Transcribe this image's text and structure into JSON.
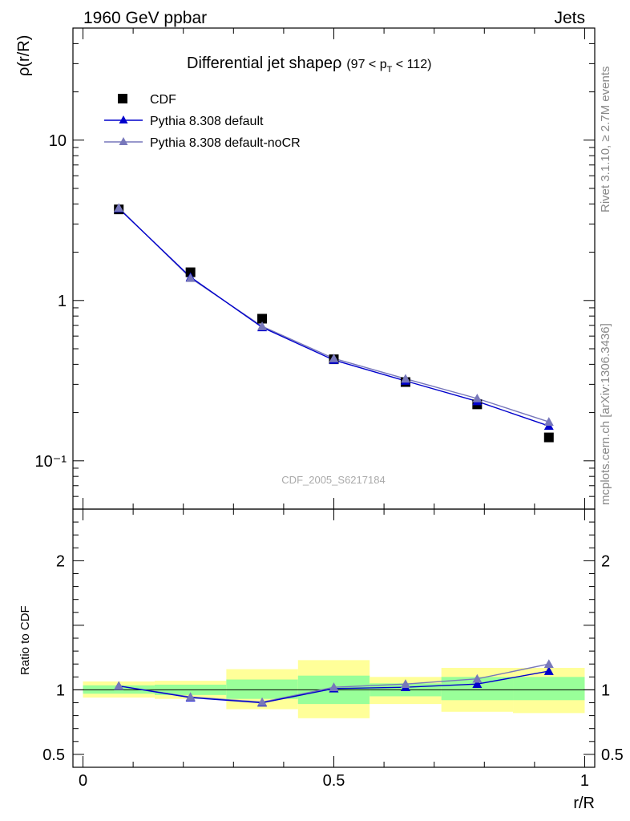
{
  "header": {
    "left": "1960 GeV ppbar",
    "right": "Jets"
  },
  "side_labels": {
    "rivet": "Rivet 3.1.10, ≥ 2.7M events",
    "source": "mcplots.cern.ch [arXiv:1306.3436]"
  },
  "chart_data": [
    {
      "type": "scatter",
      "title": "Differential jet shapeρ",
      "title_suffix": "(97 < p",
      "title_sub": "T",
      "title_end": " < 112)",
      "watermark": "CDF_2005_S6217184",
      "ylabel": "ρ(r/R)",
      "xlabel": "",
      "yscale": "log",
      "ylim": [
        0.05,
        50
      ],
      "xlim": [
        -0.02,
        1.02
      ],
      "y_tick_labels": [
        "10⁻¹",
        "1",
        "10"
      ],
      "grid": false,
      "legend_position": "top-left",
      "x": [
        0.0714,
        0.2143,
        0.3571,
        0.5,
        0.6429,
        0.7857,
        0.9286
      ],
      "series": [
        {
          "name": "CDF",
          "marker": "square",
          "color": "#000000",
          "values": [
            3.7,
            1.5,
            0.77,
            0.43,
            0.31,
            0.225,
            0.14
          ]
        },
        {
          "name": "Pythia 8.308 default",
          "marker": "triangle",
          "color": "#0000cc",
          "values": [
            3.75,
            1.4,
            0.68,
            0.425,
            0.315,
            0.235,
            0.165
          ]
        },
        {
          "name": "Pythia 8.308 default-noCR",
          "marker": "triangle",
          "color": "#7777bb",
          "values": [
            3.78,
            1.38,
            0.69,
            0.435,
            0.325,
            0.245,
            0.175
          ]
        }
      ]
    },
    {
      "type": "line",
      "ylabel": "Ratio to CDF",
      "xlabel": "r/R",
      "ylim": [
        0.4,
        2.4
      ],
      "y_ticks": [
        0.5,
        1,
        2
      ],
      "y_tick_labels": [
        "0.5",
        "1",
        "2"
      ],
      "xlim": [
        -0.02,
        1.02
      ],
      "x_ticks": [
        0,
        0.5,
        1
      ],
      "x_tick_labels": [
        "0",
        "0.5",
        "1"
      ],
      "reference_line": 1,
      "bins": [
        [
          0,
          0.1429
        ],
        [
          0.1429,
          0.2857
        ],
        [
          0.2857,
          0.4286
        ],
        [
          0.4286,
          0.5714
        ],
        [
          0.5714,
          0.7143
        ],
        [
          0.7143,
          0.8571
        ],
        [
          0.8571,
          1.0
        ]
      ],
      "band_inner": [
        [
          0.97,
          1.035
        ],
        [
          0.96,
          1.04
        ],
        [
          0.93,
          1.08
        ],
        [
          0.89,
          1.11
        ],
        [
          0.95,
          1.05
        ],
        [
          0.92,
          1.1
        ],
        [
          0.92,
          1.1
        ]
      ],
      "band_outer": [
        [
          0.94,
          1.065
        ],
        [
          0.93,
          1.07
        ],
        [
          0.85,
          1.16
        ],
        [
          0.78,
          1.23
        ],
        [
          0.89,
          1.1
        ],
        [
          0.83,
          1.17
        ],
        [
          0.82,
          1.17
        ]
      ],
      "band_inner_color": "#99ff99",
      "band_outer_color": "#ffff99",
      "x": [
        0.0714,
        0.2143,
        0.3571,
        0.5,
        0.6429,
        0.7857,
        0.9286
      ],
      "series": [
        {
          "name": "Pythia 8.308 default",
          "color": "#0000cc",
          "values": [
            1.03,
            0.94,
            0.9,
            1.01,
            1.02,
            1.045,
            1.145
          ]
        },
        {
          "name": "Pythia 8.308 default-noCR",
          "color": "#7777bb",
          "values": [
            1.03,
            0.945,
            0.905,
            1.02,
            1.045,
            1.085,
            1.2
          ]
        }
      ]
    }
  ]
}
